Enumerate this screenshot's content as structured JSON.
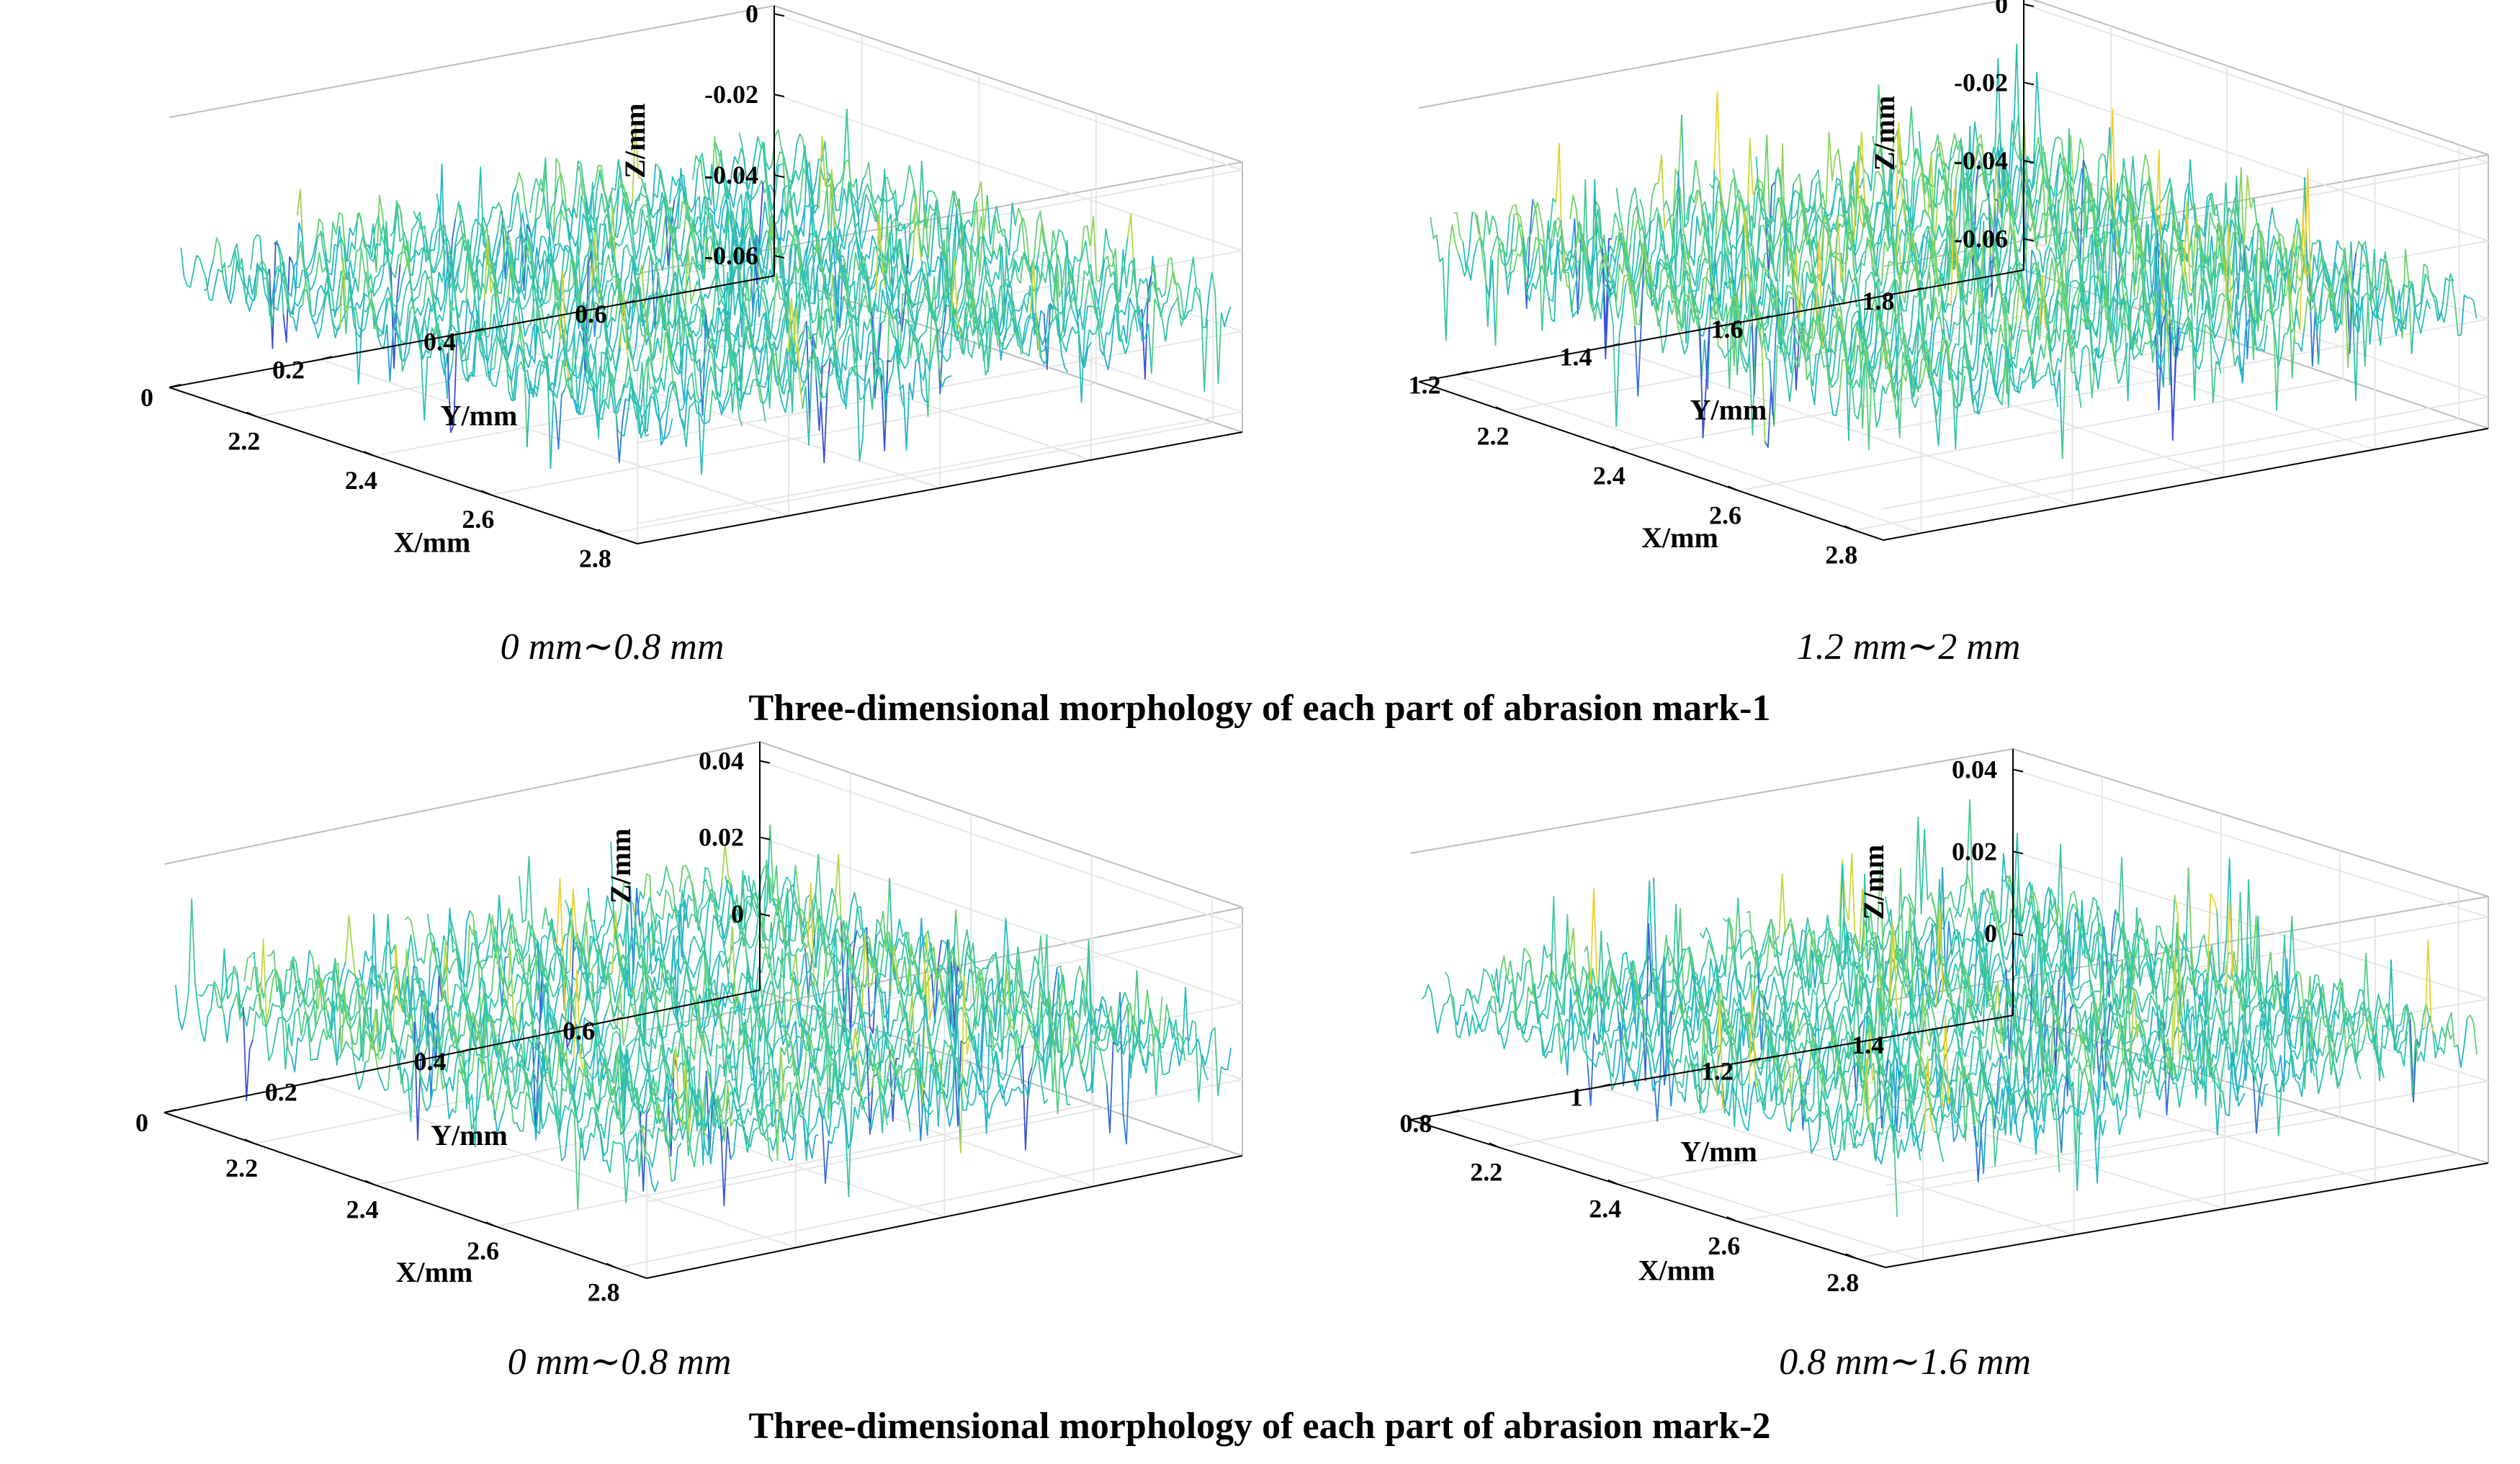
{
  "figure": {
    "caption_1": "Three-dimensional morphology of each part of abrasion mark-1",
    "caption_2": "Three-dimensional morphology of each part of abrasion mark-2"
  },
  "colors": {
    "axis": "#000000",
    "box": "#bdbdbd",
    "grid": "#e6e6e6",
    "colormap": [
      "#3a4fd6",
      "#23a9d9",
      "#27c2b4",
      "#6cd26a",
      "#c8d73a",
      "#f2cf2b"
    ]
  },
  "chart_data": [
    {
      "type": "surface",
      "subtitle": "0 mm∼0.8 mm",
      "xlabel": "X/mm",
      "ylabel": "Y/mm",
      "zlabel": "Z/mm",
      "xlim": [
        2.05,
        2.85
      ],
      "ylim": [
        0,
        0.8
      ],
      "zlim": [
        -0.065,
        0.002
      ],
      "xticks": [
        2.2,
        2.4,
        2.6,
        2.8
      ],
      "xtick_labels": [
        "2.2",
        "2.4",
        "2.6",
        "2.8"
      ],
      "yticks": [
        0,
        0.2,
        0.4,
        0.6
      ],
      "ytick_labels": [
        "0",
        "0.2",
        "0.4",
        "0.6"
      ],
      "zticks": [
        -0.06,
        -0.04,
        -0.02,
        0
      ],
      "ztick_labels": [
        "-0.06",
        "-0.04",
        "-0.02",
        "0"
      ],
      "mean_z": -0.035,
      "amplitude_z": 0.009,
      "spike_up_z": 0.016,
      "spike_down_z": 0.022,
      "seed": 11
    },
    {
      "type": "surface",
      "subtitle": "1.2 mm∼2 mm",
      "xlabel": "X/mm",
      "ylabel": "Y/mm",
      "zlabel": "Z/mm",
      "xlim": [
        2.05,
        2.85
      ],
      "ylim": [
        1.15,
        1.95
      ],
      "zlim": [
        -0.068,
        0.002
      ],
      "xticks": [
        2.2,
        2.4,
        2.6,
        2.8
      ],
      "xtick_labels": [
        "2.2",
        "2.4",
        "2.6",
        "2.8"
      ],
      "yticks": [
        1.2,
        1.4,
        1.6,
        1.8
      ],
      "ytick_labels": [
        "1.2",
        "1.4",
        "1.6",
        "1.8"
      ],
      "zticks": [
        -0.06,
        -0.04,
        -0.02,
        0
      ],
      "ztick_labels": [
        "-0.06",
        "-0.04",
        "-0.02",
        "0"
      ],
      "mean_z": -0.034,
      "amplitude_z": 0.01,
      "spike_up_z": 0.024,
      "spike_down_z": 0.024,
      "seed": 23
    },
    {
      "type": "surface",
      "subtitle": "0 mm∼0.8 mm",
      "xlabel": "X/mm",
      "ylabel": "Y/mm",
      "zlabel": "Z/mm",
      "xlim": [
        2.05,
        2.85
      ],
      "ylim": [
        0,
        0.8
      ],
      "zlim": [
        -0.02,
        0.045
      ],
      "xticks": [
        2.2,
        2.4,
        2.6,
        2.8
      ],
      "xtick_labels": [
        "2.2",
        "2.4",
        "2.6",
        "2.8"
      ],
      "yticks": [
        0,
        0.2,
        0.4,
        0.6
      ],
      "ytick_labels": [
        "0",
        "0.2",
        "0.4",
        "0.6"
      ],
      "zticks": [
        0,
        0.02,
        0.04
      ],
      "ztick_labels": [
        "0",
        "0.02",
        "0.04"
      ],
      "mean_z": 0.01,
      "amplitude_z": 0.009,
      "spike_up_z": 0.02,
      "spike_down_z": 0.022,
      "seed": 37
    },
    {
      "type": "surface",
      "subtitle": "0.8 mm∼1.6 mm",
      "xlabel": "X/mm",
      "ylabel": "Y/mm",
      "zlabel": "Z/mm",
      "xlim": [
        2.05,
        2.85
      ],
      "ylim": [
        0.75,
        1.55
      ],
      "zlim": [
        -0.02,
        0.045
      ],
      "xticks": [
        2.2,
        2.4,
        2.6,
        2.8
      ],
      "xtick_labels": [
        "2.2",
        "2.4",
        "2.6",
        "2.8"
      ],
      "yticks": [
        0.8,
        1,
        1.2,
        1.4
      ],
      "ytick_labels": [
        "0.8",
        "1",
        "1.2",
        "1.4"
      ],
      "zticks": [
        0,
        0.02,
        0.04
      ],
      "ztick_labels": [
        "0",
        "0.02",
        "0.04"
      ],
      "mean_z": 0.01,
      "amplitude_z": 0.008,
      "spike_up_z": 0.024,
      "spike_down_z": 0.016,
      "seed": 53
    }
  ]
}
